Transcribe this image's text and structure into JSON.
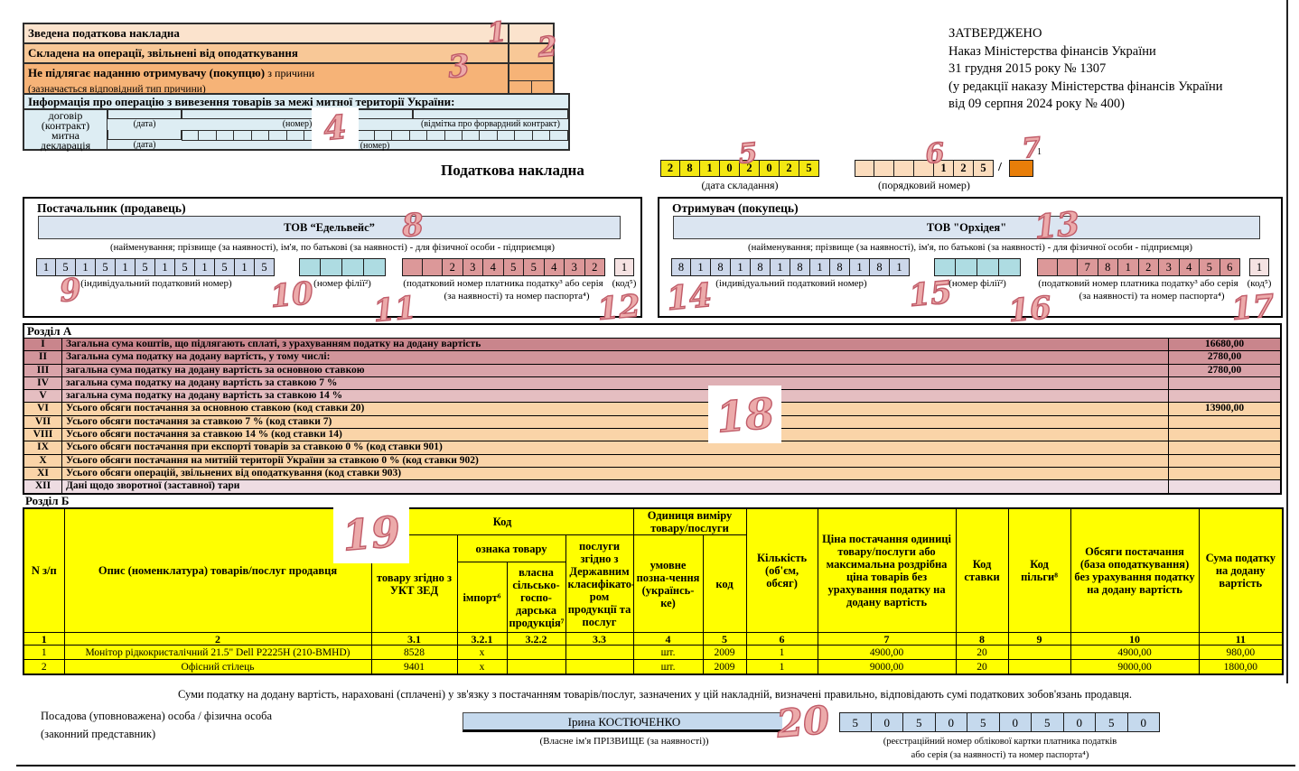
{
  "annotations": [
    "1",
    "2",
    "3",
    "4",
    "5",
    "6",
    "7",
    "8",
    "9",
    "10",
    "11",
    "12",
    "13",
    "14",
    "15",
    "16",
    "17",
    "18",
    "19",
    "20"
  ],
  "approved_block": {
    "lines": [
      "ЗАТВЕРДЖЕНО",
      "Наказ Міністерства фінансів України",
      "31 грудня 2015 року № 1307",
      "(у редакції наказу Міністерства фінансів України",
      "від 09 серпня 2024 року № 400)"
    ]
  },
  "top_block": {
    "row1": "Зведена податкова накладна",
    "row2": "Складена на операції, звільнені від оподаткування",
    "row3_bold": "Не підлягає наданню отримувачу (покупцю)",
    "row3_rest": "з причини",
    "row3_sub": "(зазначається відповідний тип причини)",
    "info_header": "Інформація про операцію з вивезення товарів за межі митної території України:",
    "contract_label1": "договір",
    "contract_label2": "(контракт)",
    "customs_label1": "митна",
    "customs_label2": "декларація",
    "date_caption": "(дата)",
    "number_caption": "(номер)",
    "forward_caption": "(відмітка про форвардний контракт)",
    "customs_cells": [
      "",
      "",
      "",
      "",
      "",
      "",
      "",
      "",
      "",
      "",
      "",
      "",
      "",
      "",
      "",
      "",
      "",
      "",
      "",
      "",
      "",
      ""
    ]
  },
  "header": {
    "title": "Податкова накладна",
    "date_cells": [
      "2",
      "8",
      "1",
      "0",
      "2",
      "0",
      "2",
      "5"
    ],
    "date_caption": "(дата складання)",
    "serial_cells": [
      "",
      "",
      "",
      "",
      "1",
      "2",
      "5"
    ],
    "serial_caption": "(порядковий номер)",
    "slash": "/",
    "orange_sup": "1"
  },
  "seller": {
    "title": "Постачальник (продавець)",
    "name": "ТОВ “Едельвейс”",
    "name_caption": "(найменування; прізвище (за наявності), ім'я, по батькові (за наявності) - для фізичної особи - підприємця)",
    "inn_cells": [
      "1",
      "5",
      "1",
      "5",
      "1",
      "5",
      "1",
      "5",
      "1",
      "5",
      "1",
      "5"
    ],
    "inn_caption": "(індивідуальний податковий номер)",
    "branch_cells": [
      "",
      "",
      "",
      ""
    ],
    "branch_caption": "(номер філії²)",
    "tax_cells": [
      "",
      "",
      "2",
      "3",
      "4",
      "5",
      "5",
      "4",
      "3",
      "2"
    ],
    "tax_caption1": "(податковий номер платника податку³ або серія",
    "tax_caption2": "(за наявності) та номер паспорта⁴)",
    "code_cell": "1",
    "code_caption": "(код⁵)"
  },
  "buyer": {
    "title": "Отримувач (покупець)",
    "name": "ТОВ \"Орхідея\"",
    "name_caption": "(найменування; прізвище (за наявності), ім'я, по батькові (за наявності) - для фізичної особи - підприємця)",
    "inn_cells": [
      "8",
      "1",
      "8",
      "1",
      "8",
      "1",
      "8",
      "1",
      "8",
      "1",
      "8",
      "1"
    ],
    "inn_caption": "(індивідуальний податковий номер)",
    "branch_cells": [
      "",
      "",
      "",
      ""
    ],
    "branch_caption": "(номер філії²)",
    "tax_cells": [
      "",
      "",
      "7",
      "8",
      "1",
      "2",
      "3",
      "4",
      "5",
      "6"
    ],
    "tax_caption1": "(податковий номер платника податку³ або серія",
    "tax_caption2": "(за наявності) та номер паспорта⁴)",
    "code_cell": "1",
    "code_caption": "(код⁵)"
  },
  "section_a": {
    "title": "Розділ А",
    "rows": [
      {
        "num": "I",
        "label": "Загальна сума коштів, що підлягають сплаті, з урахуванням податку на додану вартість",
        "value": "16680,00",
        "color": "#c9858c"
      },
      {
        "num": "II",
        "label": "Загальна сума податку на додану вартість, у тому числі:",
        "value": "2780,00",
        "color": "#d2959b"
      },
      {
        "num": "III",
        "label": "загальна сума податку на додану вартість за основною ставкою",
        "value": "2780,00",
        "color": "#d9a3a9"
      },
      {
        "num": "IV",
        "label": "загальна сума податку на додану вартість за ставкою 7 %",
        "value": "",
        "color": "#dfb0b5"
      },
      {
        "num": "V",
        "label": "загальна сума податку на додану вартість за ставкою 14 %",
        "value": "",
        "color": "#e5bec1"
      },
      {
        "num": "VI",
        "label": "Усього обсяги постачання за основною ставкою (код ставки 20)",
        "value": "13900,00",
        "color": "#fad4a8"
      },
      {
        "num": "VII",
        "label": "Усього обсяги постачання за ставкою 7 % (код ставки 7)",
        "value": "",
        "color": "#fad4a8"
      },
      {
        "num": "VIII",
        "label": "Усього обсяги постачання за ставкою 14 % (код ставки 14)",
        "value": "",
        "color": "#fad4a8"
      },
      {
        "num": "IX",
        "label": "Усього обсяги постачання при експорті товарів за ставкою 0 % (код ставки 901)",
        "value": "",
        "color": "#fad4a8"
      },
      {
        "num": "X",
        "label": "Усього обсяги постачання на митній території України за ставкою 0 % (код ставки 902)",
        "value": "",
        "color": "#fad4a8"
      },
      {
        "num": "XI",
        "label": "Усього обсяги операцій, звільнених від оподаткування (код ставки 903)",
        "value": "",
        "color": "#fad4a8"
      },
      {
        "num": "XII",
        "label": "Дані щодо зворотної (заставної) тари",
        "value": "",
        "color": "#eedce2"
      }
    ]
  },
  "section_b": {
    "title": "Розділ Б",
    "header": {
      "col_n": "N з/п",
      "col_desc": "Опис (номенклатура) товарів/послуг продавця",
      "group_code": "Код",
      "col_ukt": "товару згідно з УКТ ЗЕД",
      "group_feature": "ознака товару",
      "col_import": "імпорт⁶",
      "col_agri": "власна сільсько-госпо-дарська продукція⁷",
      "col_services": "послуги згідно з Державним класифікато-ром продукції та послуг",
      "group_unit": "Одиниця виміру товару/послуги",
      "col_unit_name": "умовне позна-чення (українсь-ке)",
      "col_unit_code": "код",
      "col_qty": "Кількість (об'єм, обсяг)",
      "col_price": "Ціна постачання одиниці товару/послуги або максимальна роздрібна ціна товарів  без урахування податку на додану вартість",
      "col_rate": "Код ставки",
      "col_benefit": "Код пільги⁸",
      "col_volume": "Обсяги постачання (база оподаткування) без урахування податку на додану вартість",
      "col_vat": "Сума податку на додану вартість"
    },
    "number_row": [
      "1",
      "2",
      "3.1",
      "3.2.1",
      "3.2.2",
      "3.3",
      "4",
      "5",
      "6",
      "7",
      "8",
      "9",
      "10",
      "11"
    ],
    "rows": [
      [
        "1",
        "Монітор рідкокристалічний 21.5\" Dell P2225H (210-BMHD)",
        "8528",
        "х",
        "",
        "",
        "шт.",
        "2009",
        "1",
        "4900,00",
        "20",
        "",
        "4900,00",
        "980,00"
      ],
      [
        "2",
        "Офісний стілець",
        "9401",
        "х",
        "",
        "",
        "шт.",
        "2009",
        "1",
        "9000,00",
        "20",
        "",
        "9000,00",
        "1800,00"
      ]
    ]
  },
  "footer": {
    "statement": "Суми податку на додану вартість, нараховані (сплачені) у зв'язку з постачанням товарів/послуг, зазначених у цій накладній, визначені правильно, відповідають сумі податкових зобов'язань продавця.",
    "official_label1": "Посадова (уповноважена) особа / фізична особа",
    "official_label2": "(законний представник)",
    "name": "Ірина КОСТЮЧЕНКО",
    "name_caption": "(Власне ім'я ПРІЗВИЩЕ (за наявності))",
    "reg_cells": [
      "5",
      "0",
      "5",
      "0",
      "5",
      "0",
      "5",
      "0",
      "5",
      "0"
    ],
    "reg_caption1": "(реєстраційний номер облікової картки платника податків",
    "reg_caption2": "або серія (за наявності) та номер паспорта⁴)"
  }
}
